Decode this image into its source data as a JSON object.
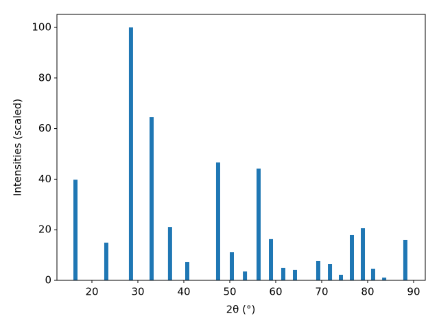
{
  "chart_data": {
    "type": "bar",
    "x_label": "2θ (°)",
    "y_label": "Intensities (scaled)",
    "x": [
      16.42,
      23.13,
      28.5,
      32.99,
      37.0,
      40.75,
      47.46,
      50.45,
      53.3,
      56.27,
      58.96,
      61.64,
      64.18,
      69.25,
      71.8,
      74.18,
      76.57,
      78.96,
      81.19,
      83.6,
      88.2
    ],
    "values": [
      39.8,
      14.9,
      100,
      64.5,
      21.1,
      7.3,
      46.6,
      11.1,
      3.5,
      44.2,
      16.3,
      4.9,
      4.1,
      7.6,
      6.5,
      2.2,
      17.9,
      20.6,
      4.6,
      1.1,
      16.0
    ],
    "color": "#1f77b4",
    "xlim": [
      12.39,
      92.54
    ],
    "ylim": [
      0,
      105.15
    ],
    "xticks": [
      20,
      30,
      40,
      50,
      60,
      70,
      80,
      90
    ],
    "yticks": [
      0,
      20,
      40,
      60,
      80,
      100
    ],
    "grid": false
  }
}
